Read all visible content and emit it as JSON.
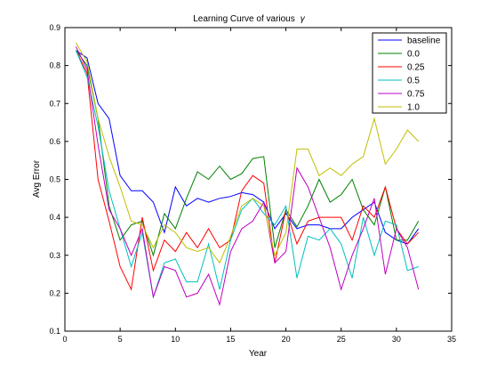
{
  "chart_data": {
    "type": "line",
    "title": "Learning Curve of various",
    "title_symbol": "γ",
    "xlabel": "Year",
    "ylabel": "Avg Error",
    "xlim": [
      0,
      35
    ],
    "ylim": [
      0.1,
      0.9
    ],
    "xticks": [
      "0",
      "5",
      "10",
      "15",
      "20",
      "25",
      "30",
      "35"
    ],
    "yticks": [
      "0.1",
      "0.2",
      "0.3",
      "0.4",
      "0.5",
      "0.6",
      "0.7",
      "0.8",
      "0.9"
    ],
    "grid": false,
    "legend_position": "top-right",
    "x": [
      1,
      2,
      3,
      4,
      5,
      6,
      7,
      8,
      9,
      10,
      11,
      12,
      13,
      14,
      15,
      16,
      17,
      18,
      19,
      20,
      21,
      22,
      23,
      24,
      25,
      26,
      27,
      28,
      29,
      30,
      31,
      32
    ],
    "series": [
      {
        "name": "baseline",
        "color": "#0000ff",
        "values": [
          0.84,
          0.82,
          0.7,
          0.66,
          0.51,
          0.47,
          0.47,
          0.44,
          0.36,
          0.48,
          0.43,
          0.45,
          0.44,
          0.45,
          0.455,
          0.465,
          0.46,
          0.44,
          0.37,
          0.41,
          0.37,
          0.38,
          0.38,
          0.37,
          0.37,
          0.4,
          0.42,
          0.44,
          0.36,
          0.34,
          0.33,
          0.37
        ]
      },
      {
        "name": "0.0",
        "color": "#008000",
        "values": [
          0.84,
          0.8,
          0.66,
          0.43,
          0.34,
          0.38,
          0.39,
          0.3,
          0.41,
          0.37,
          0.45,
          0.52,
          0.5,
          0.535,
          0.5,
          0.515,
          0.555,
          0.56,
          0.32,
          0.42,
          0.375,
          0.43,
          0.5,
          0.44,
          0.46,
          0.5,
          0.42,
          0.38,
          0.48,
          0.34,
          0.34,
          0.39
        ]
      },
      {
        "name": "0.25",
        "color": "#ff0000",
        "values": [
          0.84,
          0.78,
          0.5,
          0.39,
          0.27,
          0.21,
          0.4,
          0.26,
          0.34,
          0.31,
          0.36,
          0.32,
          0.37,
          0.32,
          0.34,
          0.47,
          0.51,
          0.49,
          0.28,
          0.42,
          0.33,
          0.39,
          0.4,
          0.4,
          0.4,
          0.34,
          0.43,
          0.4,
          0.48,
          0.37,
          0.33,
          0.36
        ]
      },
      {
        "name": "0.5",
        "color": "#00bfbf",
        "values": [
          0.84,
          0.77,
          0.64,
          0.47,
          0.37,
          0.27,
          0.36,
          0.19,
          0.28,
          0.29,
          0.23,
          0.23,
          0.33,
          0.21,
          0.34,
          0.42,
          0.45,
          0.41,
          0.38,
          0.43,
          0.24,
          0.35,
          0.34,
          0.37,
          0.33,
          0.24,
          0.4,
          0.3,
          0.39,
          0.38,
          0.26,
          0.27
        ]
      },
      {
        "name": "0.75",
        "color": "#bf00bf",
        "values": [
          0.85,
          0.79,
          0.59,
          0.42,
          0.37,
          0.3,
          0.37,
          0.19,
          0.27,
          0.26,
          0.19,
          0.2,
          0.25,
          0.17,
          0.31,
          0.37,
          0.39,
          0.44,
          0.28,
          0.31,
          0.53,
          0.48,
          0.4,
          0.32,
          0.21,
          0.3,
          0.37,
          0.45,
          0.25,
          0.37,
          0.32,
          0.21
        ]
      },
      {
        "name": "1.0",
        "color": "#bfbf00",
        "values": [
          0.86,
          0.81,
          0.66,
          0.56,
          0.48,
          0.39,
          0.38,
          0.32,
          0.38,
          0.36,
          0.32,
          0.31,
          0.32,
          0.28,
          0.35,
          0.43,
          0.45,
          0.43,
          0.3,
          0.36,
          0.58,
          0.58,
          0.51,
          0.53,
          0.51,
          0.54,
          0.56,
          0.66,
          0.54,
          0.58,
          0.63,
          0.6
        ]
      }
    ]
  }
}
